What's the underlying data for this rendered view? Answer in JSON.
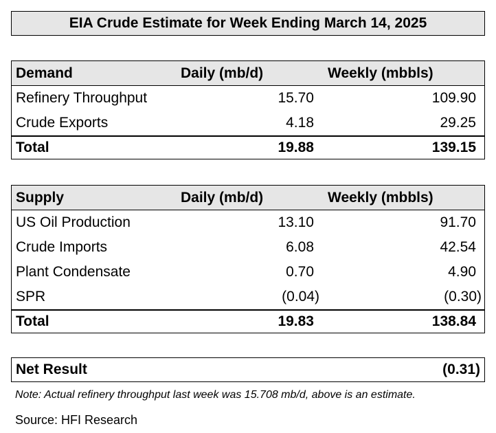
{
  "title": "EIA Crude Estimate for Week Ending March 14, 2025",
  "demand": {
    "header": {
      "label": "Demand",
      "daily": "Daily (mb/d)",
      "weekly": "Weekly (mbbls)"
    },
    "rows": [
      {
        "label": "Refinery Throughput",
        "daily": "15.70",
        "weekly": "109.90"
      },
      {
        "label": "Crude Exports",
        "daily": "4.18",
        "weekly": "29.25"
      }
    ],
    "total": {
      "label": "Total",
      "daily": "19.88",
      "weekly": "139.15"
    }
  },
  "supply": {
    "header": {
      "label": "Supply",
      "daily": "Daily (mb/d)",
      "weekly": "Weekly (mbbls)"
    },
    "rows": [
      {
        "label": "US Oil Production",
        "daily": "13.10",
        "weekly": "91.70"
      },
      {
        "label": "Crude Imports",
        "daily": "6.08",
        "weekly": "42.54"
      },
      {
        "label": "Plant Condensate",
        "daily": "0.70",
        "weekly": "4.90"
      },
      {
        "label": "SPR",
        "daily": "(0.04)",
        "weekly": "(0.30)"
      }
    ],
    "total": {
      "label": "Total",
      "daily": "19.83",
      "weekly": "138.84"
    }
  },
  "net_result": {
    "label": "Net Result",
    "value": "(0.31)"
  },
  "note": "Note: Actual refinery throughput last week was 15.708 mb/d, above is an estimate.",
  "source": "Source: HFI Research"
}
